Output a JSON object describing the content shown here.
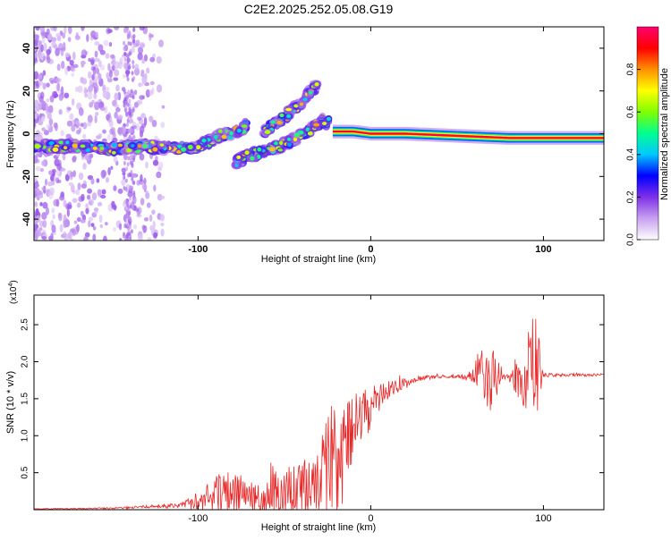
{
  "title": "C2E2.2025.252.05.08.G19",
  "chart_data": [
    {
      "type": "heatmap",
      "xlabel": "Height of straight line (km)",
      "ylabel": "Frequency (Hz)",
      "xlim": [
        -195,
        135
      ],
      "ylim": [
        -50,
        50
      ],
      "x_ticks": [
        -100,
        0,
        100
      ],
      "y_ticks": [
        -40,
        -20,
        0,
        20,
        40
      ],
      "tracks": [
        {
          "name": "main-band",
          "points": [
            [
              -195,
              -6
            ],
            [
              -170,
              -6
            ],
            [
              -150,
              -7
            ],
            [
              -130,
              -6
            ],
            [
              -115,
              -7
            ],
            [
              -100,
              -6
            ],
            [
              -92,
              -3
            ],
            [
              -85,
              0
            ],
            [
              -80,
              0
            ],
            [
              -75,
              2
            ],
            [
              -72,
              4
            ]
          ]
        },
        {
          "name": "upper-branch",
          "points": [
            [
              -62,
              1
            ],
            [
              -55,
              5
            ],
            [
              -48,
              9
            ],
            [
              -40,
              15
            ],
            [
              -35,
              20
            ],
            [
              -31,
              23
            ]
          ]
        },
        {
          "name": "lower-branch",
          "points": [
            [
              -78,
              -13
            ],
            [
              -70,
              -10
            ],
            [
              -60,
              -8
            ],
            [
              -50,
              -5
            ],
            [
              -42,
              -2
            ],
            [
              -35,
              2
            ],
            [
              -28,
              6
            ],
            [
              -24,
              5
            ]
          ]
        },
        {
          "name": "steady-carrier",
          "points": [
            [
              -22,
              1
            ],
            [
              -10,
              1
            ],
            [
              0,
              0
            ],
            [
              20,
              0
            ],
            [
              50,
              -1
            ],
            [
              80,
              -2
            ],
            [
              100,
              -2
            ],
            [
              135,
              -2
            ]
          ]
        }
      ],
      "colorbar": {
        "label": "Normalized spectral amplitude",
        "ticks": [
          "0.0",
          "0.2",
          "0.4",
          "0.6",
          "0.8"
        ],
        "range": [
          0,
          1
        ],
        "stops": [
          "#ffffff",
          "#c8a0f0",
          "#7e30e8",
          "#0000ff",
          "#00c8ff",
          "#00ff90",
          "#80ff00",
          "#ffff00",
          "#ff9000",
          "#ff0000",
          "#ff0070"
        ]
      }
    },
    {
      "type": "line",
      "xlabel": "Height of straight line (km)",
      "ylabel": "SNR (10 * v/v)",
      "multiplier": "(x10",
      "multiplier_exp": "4",
      "multiplier_close": ")",
      "xlim": [
        -195,
        135
      ],
      "ylim": [
        0,
        2.9
      ],
      "x_ticks": [
        -100,
        0,
        100
      ],
      "y_ticks": [
        0.5,
        1.0,
        1.5,
        2.0,
        2.5
      ],
      "y_tick_labels": [
        "0.5",
        "1.0",
        "1.5",
        "2.0",
        "2.5"
      ],
      "color": "#e82828",
      "envelope": {
        "x": [
          -195,
          -150,
          -130,
          -110,
          -100,
          -90,
          -80,
          -70,
          -60,
          -50,
          -40,
          -30,
          -25,
          -20,
          -15,
          -10,
          -5,
          0,
          10,
          20,
          30,
          40,
          50,
          60,
          62,
          70,
          75,
          80,
          85,
          90,
          95,
          98,
          100,
          110,
          120,
          135
        ],
        "base": [
          0.01,
          0.02,
          0.04,
          0.06,
          0.12,
          0.22,
          0.25,
          0.18,
          0.2,
          0.28,
          0.35,
          0.45,
          0.6,
          0.8,
          0.95,
          1.1,
          1.25,
          1.4,
          1.6,
          1.72,
          1.78,
          1.8,
          1.8,
          1.8,
          1.8,
          1.82,
          1.82,
          1.8,
          1.8,
          1.82,
          1.8,
          1.82,
          1.82,
          1.82,
          1.82,
          1.82
        ],
        "amp": [
          0.005,
          0.01,
          0.02,
          0.04,
          0.12,
          0.25,
          0.3,
          0.2,
          0.25,
          0.35,
          0.45,
          0.55,
          0.7,
          0.9,
          0.5,
          0.45,
          0.4,
          0.3,
          0.15,
          0.06,
          0.03,
          0.02,
          0.02,
          0.1,
          0.4,
          0.5,
          0.15,
          0.05,
          0.35,
          0.5,
          0.9,
          0.5,
          0.03,
          0.02,
          0.02,
          0.02
        ]
      }
    }
  ]
}
